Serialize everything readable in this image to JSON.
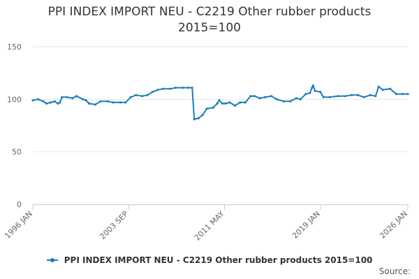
{
  "chart_data": {
    "type": "line",
    "title_lines": [
      "PPI INDEX IMPORT NEU - C2219 Other rubber products",
      "2015=100"
    ],
    "xlabel": "",
    "ylabel": "",
    "x_range": [
      "1996-01",
      "2026-01"
    ],
    "ylim": [
      0,
      150
    ],
    "y_ticks": [
      0,
      50,
      100,
      150
    ],
    "x_tick_labels": [
      {
        "date": "1996-01",
        "label": "1996 JAN"
      },
      {
        "date": "2003-09",
        "label": "2003 SEP"
      },
      {
        "date": "2011-05",
        "label": "2011 MAY"
      },
      {
        "date": "2019-01",
        "label": "2019 JAN"
      },
      {
        "date": "2026-01",
        "label": "2026 JAN"
      }
    ],
    "grid": "horizontal",
    "legend_position": "bottom",
    "color": "#1a7eb8",
    "series": [
      {
        "name": "PPI INDEX IMPORT NEU - C2219 Other rubber products 2015=100",
        "points": [
          [
            "1996-01",
            99
          ],
          [
            "1996-06",
            100
          ],
          [
            "1996-11",
            98
          ],
          [
            "1997-02",
            96
          ],
          [
            "1997-06",
            97
          ],
          [
            "1997-10",
            98
          ],
          [
            "1998-01",
            96
          ],
          [
            "1998-03",
            97
          ],
          [
            "1998-05",
            102
          ],
          [
            "1998-10",
            102
          ],
          [
            "1999-03",
            101
          ],
          [
            "1999-07",
            103
          ],
          [
            "2000-01",
            100
          ],
          [
            "2000-04",
            99
          ],
          [
            "2000-07",
            96
          ],
          [
            "2001-01",
            95
          ],
          [
            "2001-06",
            98
          ],
          [
            "2002-01",
            98
          ],
          [
            "2002-06",
            97
          ],
          [
            "2003-01",
            97
          ],
          [
            "2003-06",
            97
          ],
          [
            "2003-11",
            102
          ],
          [
            "2004-04",
            104
          ],
          [
            "2004-10",
            103
          ],
          [
            "2005-03",
            104
          ],
          [
            "2005-08",
            107
          ],
          [
            "2006-01",
            109
          ],
          [
            "2006-06",
            110
          ],
          [
            "2007-01",
            110
          ],
          [
            "2007-06",
            111
          ],
          [
            "2008-01",
            111
          ],
          [
            "2008-06",
            111
          ],
          [
            "2008-10",
            111
          ],
          [
            "2008-12",
            81
          ],
          [
            "2009-04",
            82
          ],
          [
            "2009-08",
            85
          ],
          [
            "2009-12",
            91
          ],
          [
            "2010-06",
            92
          ],
          [
            "2010-10",
            96
          ],
          [
            "2010-12",
            99
          ],
          [
            "2011-03",
            96
          ],
          [
            "2011-06",
            96
          ],
          [
            "2011-10",
            97
          ],
          [
            "2012-03",
            94
          ],
          [
            "2012-08",
            97
          ],
          [
            "2013-01",
            97
          ],
          [
            "2013-06",
            103
          ],
          [
            "2013-10",
            103
          ],
          [
            "2014-03",
            101
          ],
          [
            "2014-08",
            102
          ],
          [
            "2015-02",
            103
          ],
          [
            "2015-07",
            100
          ],
          [
            "2016-02",
            98
          ],
          [
            "2016-08",
            98
          ],
          [
            "2017-02",
            101
          ],
          [
            "2017-06",
            100
          ],
          [
            "2017-11",
            105
          ],
          [
            "2018-03",
            106
          ],
          [
            "2018-05",
            111
          ],
          [
            "2018-06",
            113
          ],
          [
            "2018-08",
            108
          ],
          [
            "2019-01",
            107
          ],
          [
            "2019-04",
            102
          ],
          [
            "2019-10",
            102
          ],
          [
            "2020-06",
            103
          ],
          [
            "2021-01",
            103
          ],
          [
            "2021-07",
            104
          ],
          [
            "2022-01",
            104
          ],
          [
            "2022-07",
            102
          ],
          [
            "2023-01",
            104
          ],
          [
            "2023-06",
            103
          ],
          [
            "2023-09",
            112
          ],
          [
            "2024-01",
            109
          ],
          [
            "2024-08",
            110
          ],
          [
            "2025-02",
            105
          ],
          [
            "2025-08",
            105
          ],
          [
            "2026-01",
            105
          ]
        ]
      }
    ]
  },
  "legend": {
    "label": "PPI INDEX IMPORT NEU - C2219 Other rubber products 2015=100"
  },
  "source": {
    "label": "Source:"
  }
}
